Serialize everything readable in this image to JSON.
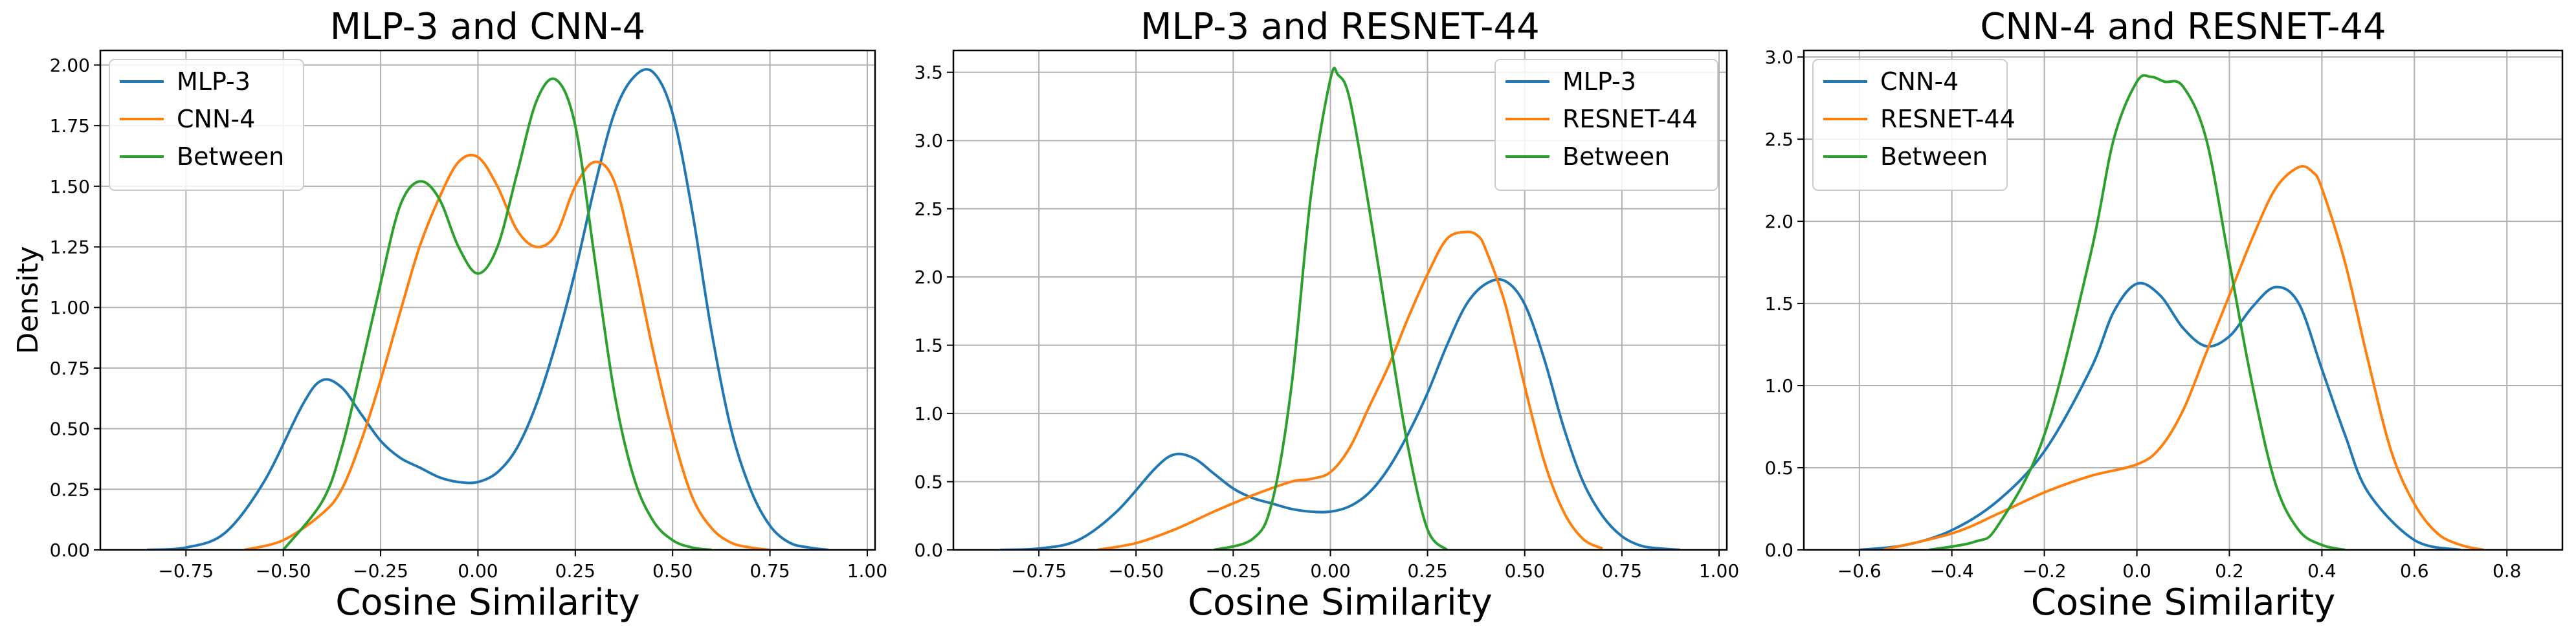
{
  "chart_data": [
    {
      "type": "line",
      "title": "MLP-3 and CNN-4",
      "xlabel": "Cosine Similarity",
      "ylabel": "Density",
      "xlim": [
        -0.97,
        1.02
      ],
      "ylim": [
        0,
        2.06
      ],
      "xticks": [
        -0.75,
        -0.5,
        -0.25,
        0.0,
        0.25,
        0.5,
        0.75,
        1.0
      ],
      "xtick_labels": [
        "−0.75",
        "−0.50",
        "−0.25",
        "0.00",
        "0.25",
        "0.50",
        "0.75",
        "1.00"
      ],
      "yticks": [
        0,
        0.25,
        0.5,
        0.75,
        1.0,
        1.25,
        1.5,
        1.75,
        2.0
      ],
      "ytick_labels": [
        "0.00",
        "0.25",
        "0.50",
        "0.75",
        "1.00",
        "1.25",
        "1.50",
        "1.75",
        "2.00"
      ],
      "grid": true,
      "legend_position": "top-left",
      "series": [
        {
          "name": "MLP-3",
          "color": "#1f77b4",
          "x": [
            -0.85,
            -0.75,
            -0.65,
            -0.55,
            -0.45,
            -0.4,
            -0.35,
            -0.3,
            -0.25,
            -0.2,
            -0.15,
            -0.1,
            -0.05,
            0.0,
            0.05,
            0.1,
            0.15,
            0.2,
            0.25,
            0.3,
            0.35,
            0.4,
            0.45,
            0.5,
            0.55,
            0.6,
            0.65,
            0.7,
            0.75,
            0.8,
            0.85,
            0.9
          ],
          "y": [
            0.0,
            0.01,
            0.07,
            0.28,
            0.6,
            0.7,
            0.67,
            0.56,
            0.45,
            0.38,
            0.34,
            0.3,
            0.28,
            0.28,
            0.32,
            0.42,
            0.6,
            0.85,
            1.15,
            1.5,
            1.8,
            1.95,
            1.97,
            1.8,
            1.4,
            0.9,
            0.5,
            0.25,
            0.1,
            0.03,
            0.01,
            0.0
          ]
        },
        {
          "name": "CNN-4",
          "color": "#ff7f0e",
          "x": [
            -0.6,
            -0.5,
            -0.4,
            -0.35,
            -0.3,
            -0.25,
            -0.2,
            -0.15,
            -0.1,
            -0.05,
            0.0,
            0.05,
            0.1,
            0.15,
            0.2,
            0.25,
            0.3,
            0.35,
            0.4,
            0.45,
            0.5,
            0.55,
            0.6,
            0.65,
            0.7,
            0.75
          ],
          "y": [
            0.0,
            0.04,
            0.15,
            0.25,
            0.45,
            0.7,
            0.98,
            1.25,
            1.45,
            1.6,
            1.62,
            1.5,
            1.32,
            1.25,
            1.3,
            1.5,
            1.6,
            1.52,
            1.2,
            0.82,
            0.48,
            0.22,
            0.09,
            0.03,
            0.01,
            0.0
          ]
        },
        {
          "name": "Between",
          "color": "#2ca02c",
          "x": [
            -0.5,
            -0.4,
            -0.35,
            -0.3,
            -0.25,
            -0.2,
            -0.15,
            -0.1,
            -0.05,
            0.0,
            0.05,
            0.1,
            0.15,
            0.2,
            0.25,
            0.3,
            0.35,
            0.4,
            0.45,
            0.5,
            0.55,
            0.6
          ],
          "y": [
            0.0,
            0.2,
            0.42,
            0.75,
            1.1,
            1.42,
            1.52,
            1.45,
            1.25,
            1.14,
            1.25,
            1.55,
            1.85,
            1.94,
            1.75,
            1.2,
            0.65,
            0.3,
            0.12,
            0.04,
            0.01,
            0.0
          ]
        }
      ]
    },
    {
      "type": "line",
      "title": "MLP-3 and RESNET-44",
      "xlabel": "Cosine Similarity",
      "ylabel": "",
      "xlim": [
        -0.97,
        1.02
      ],
      "ylim": [
        0,
        3.66
      ],
      "xticks": [
        -0.75,
        -0.5,
        -0.25,
        0.0,
        0.25,
        0.5,
        0.75,
        1.0
      ],
      "xtick_labels": [
        "−0.75",
        "−0.50",
        "−0.25",
        "0.00",
        "0.25",
        "0.50",
        "0.75",
        "1.00"
      ],
      "yticks": [
        0,
        0.5,
        1.0,
        1.5,
        2.0,
        2.5,
        3.0,
        3.5
      ],
      "ytick_labels": [
        "0.0",
        "0.5",
        "1.0",
        "1.5",
        "2.0",
        "2.5",
        "3.0",
        "3.5"
      ],
      "grid": true,
      "legend_position": "top-right",
      "series": [
        {
          "name": "MLP-3",
          "color": "#1f77b4",
          "x": [
            -0.85,
            -0.75,
            -0.65,
            -0.55,
            -0.45,
            -0.4,
            -0.35,
            -0.3,
            -0.25,
            -0.2,
            -0.15,
            -0.1,
            -0.05,
            0.0,
            0.05,
            0.1,
            0.15,
            0.2,
            0.25,
            0.3,
            0.35,
            0.4,
            0.45,
            0.5,
            0.55,
            0.6,
            0.65,
            0.7,
            0.75,
            0.8,
            0.85,
            0.9
          ],
          "y": [
            0.0,
            0.01,
            0.07,
            0.28,
            0.6,
            0.7,
            0.67,
            0.56,
            0.45,
            0.38,
            0.34,
            0.3,
            0.28,
            0.28,
            0.32,
            0.42,
            0.6,
            0.85,
            1.15,
            1.5,
            1.8,
            1.95,
            1.97,
            1.8,
            1.4,
            0.9,
            0.5,
            0.25,
            0.1,
            0.03,
            0.01,
            0.0
          ]
        },
        {
          "name": "RESNET-44",
          "color": "#ff7f0e",
          "x": [
            -0.6,
            -0.5,
            -0.4,
            -0.3,
            -0.2,
            -0.1,
            -0.05,
            0.0,
            0.05,
            0.1,
            0.15,
            0.2,
            0.25,
            0.3,
            0.35,
            0.38,
            0.4,
            0.45,
            0.5,
            0.55,
            0.6,
            0.65,
            0.7
          ],
          "y": [
            0.0,
            0.05,
            0.15,
            0.28,
            0.4,
            0.5,
            0.52,
            0.57,
            0.75,
            1.05,
            1.35,
            1.7,
            2.02,
            2.28,
            2.33,
            2.3,
            2.2,
            1.8,
            1.2,
            0.65,
            0.28,
            0.08,
            0.01
          ]
        },
        {
          "name": "Between",
          "color": "#2ca02c",
          "x": [
            -0.3,
            -0.2,
            -0.15,
            -0.1,
            -0.05,
            0.0,
            0.02,
            0.05,
            0.1,
            0.15,
            0.2,
            0.25,
            0.3
          ],
          "y": [
            0.0,
            0.08,
            0.35,
            1.2,
            2.6,
            3.45,
            3.48,
            3.3,
            2.5,
            1.6,
            0.75,
            0.15,
            0.0
          ]
        }
      ]
    },
    {
      "type": "line",
      "title": "CNN-4 and RESNET-44",
      "xlabel": "Cosine Similarity",
      "ylabel": "",
      "xlim": [
        -0.72,
        0.92
      ],
      "ylim": [
        0,
        3.04
      ],
      "xticks": [
        -0.6,
        -0.4,
        -0.2,
        0.0,
        0.2,
        0.4,
        0.6,
        0.8
      ],
      "xtick_labels": [
        "−0.6",
        "−0.4",
        "−0.2",
        "0.0",
        "0.2",
        "0.4",
        "0.6",
        "0.8"
      ],
      "yticks": [
        0,
        0.5,
        1.0,
        1.5,
        2.0,
        2.5,
        3.0
      ],
      "ytick_labels": [
        "0.0",
        "0.5",
        "1.0",
        "1.5",
        "2.0",
        "2.5",
        "3.0"
      ],
      "grid": true,
      "legend_position": "top-left",
      "series": [
        {
          "name": "CNN-4",
          "color": "#1f77b4",
          "x": [
            -0.6,
            -0.5,
            -0.4,
            -0.3,
            -0.2,
            -0.1,
            -0.05,
            0.0,
            0.05,
            0.1,
            0.15,
            0.2,
            0.25,
            0.3,
            0.35,
            0.4,
            0.45,
            0.5,
            0.6,
            0.7
          ],
          "y": [
            0.0,
            0.03,
            0.12,
            0.3,
            0.6,
            1.1,
            1.45,
            1.62,
            1.55,
            1.35,
            1.24,
            1.3,
            1.48,
            1.6,
            1.5,
            1.1,
            0.7,
            0.35,
            0.06,
            0.0
          ]
        },
        {
          "name": "RESNET-44",
          "color": "#ff7f0e",
          "x": [
            -0.55,
            -0.4,
            -0.3,
            -0.2,
            -0.1,
            0.0,
            0.05,
            0.1,
            0.15,
            0.2,
            0.25,
            0.3,
            0.35,
            0.38,
            0.4,
            0.45,
            0.5,
            0.55,
            0.6,
            0.65,
            0.7,
            0.75
          ],
          "y": [
            0.0,
            0.1,
            0.22,
            0.35,
            0.45,
            0.52,
            0.62,
            0.85,
            1.2,
            1.55,
            1.9,
            2.2,
            2.33,
            2.3,
            2.2,
            1.75,
            1.15,
            0.6,
            0.28,
            0.1,
            0.03,
            0.0
          ]
        },
        {
          "name": "Between",
          "color": "#2ca02c",
          "x": [
            -0.45,
            -0.35,
            -0.3,
            -0.2,
            -0.1,
            -0.05,
            0.0,
            0.03,
            0.06,
            0.1,
            0.15,
            0.2,
            0.25,
            0.3,
            0.35,
            0.4,
            0.45
          ],
          "y": [
            0.0,
            0.05,
            0.15,
            0.7,
            1.8,
            2.5,
            2.85,
            2.88,
            2.85,
            2.82,
            2.5,
            1.75,
            1.0,
            0.4,
            0.12,
            0.03,
            0.0
          ]
        }
      ]
    }
  ]
}
